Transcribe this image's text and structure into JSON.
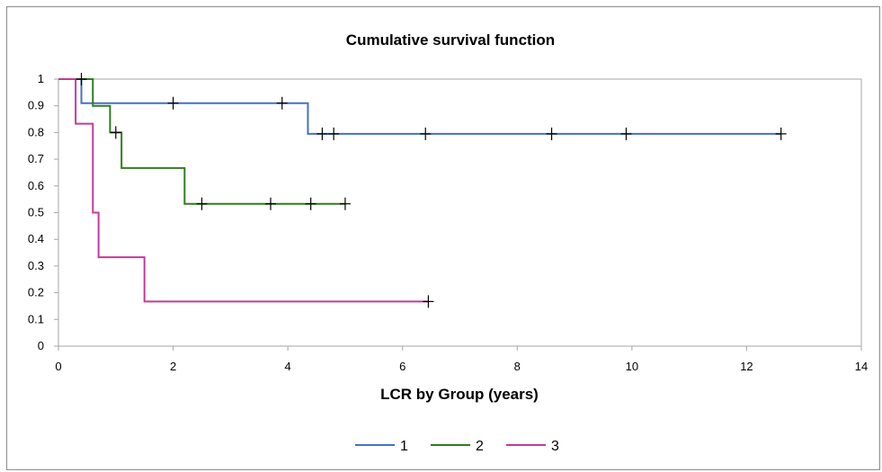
{
  "chart_data": {
    "type": "line",
    "subtype": "step (Kaplan-Meier)",
    "title": "Cumulative survival function",
    "xlabel": "LCR by Group (years)",
    "ylabel": "",
    "xlim": [
      0,
      14
    ],
    "ylim": [
      0,
      1
    ],
    "x_ticks": [
      "0",
      "2",
      "4",
      "6",
      "8",
      "10",
      "12",
      "14"
    ],
    "y_ticks": [
      "0",
      "0.1",
      "0.2",
      "0.3",
      "0.4",
      "0.5",
      "0.6",
      "0.7",
      "0.8",
      "0.9",
      "1"
    ],
    "grid": false,
    "legend_position": "bottom",
    "series": [
      {
        "name": "1",
        "color": "#4472c4",
        "steps": [
          [
            0,
            1
          ],
          [
            0.4,
            0.91
          ],
          [
            4.35,
            0.795
          ],
          [
            12.6,
            0.795
          ]
        ],
        "censored": [
          [
            0.4,
            1
          ],
          [
            2.0,
            0.91
          ],
          [
            3.9,
            0.91
          ],
          [
            4.6,
            0.795
          ],
          [
            4.8,
            0.795
          ],
          [
            6.4,
            0.795
          ],
          [
            8.6,
            0.795
          ],
          [
            9.9,
            0.795
          ],
          [
            12.6,
            0.795
          ]
        ]
      },
      {
        "name": "2",
        "color": "#2e7d1f",
        "steps": [
          [
            0,
            1
          ],
          [
            0.6,
            0.9
          ],
          [
            0.9,
            0.8
          ],
          [
            1.1,
            0.667
          ],
          [
            2.2,
            0.533
          ],
          [
            5.0,
            0.533
          ]
        ],
        "censored": [
          [
            1.0,
            0.8
          ],
          [
            2.5,
            0.533
          ],
          [
            3.7,
            0.533
          ],
          [
            4.4,
            0.533
          ],
          [
            5.0,
            0.533
          ]
        ]
      },
      {
        "name": "3",
        "color": "#c23b99",
        "steps": [
          [
            0,
            1
          ],
          [
            0.3,
            0.833
          ],
          [
            0.6,
            0.5
          ],
          [
            0.7,
            0.333
          ],
          [
            1.5,
            0.167
          ],
          [
            6.45,
            0.167
          ]
        ],
        "censored": [
          [
            6.45,
            0.167
          ]
        ]
      }
    ]
  }
}
